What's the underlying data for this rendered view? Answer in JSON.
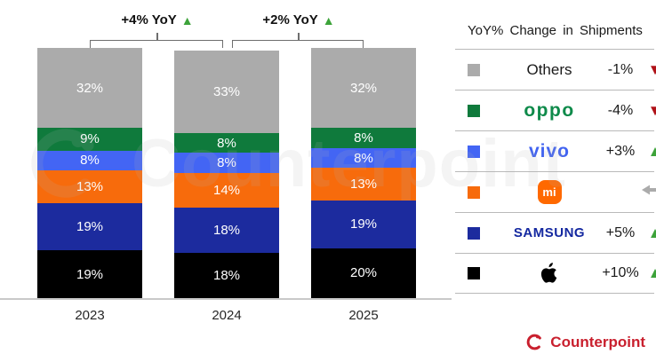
{
  "chart_data": {
    "type": "bar",
    "stacked": true,
    "categories": [
      "2023",
      "2024",
      "2025"
    ],
    "series": [
      {
        "name": "Apple",
        "color": "#000000",
        "values": [
          19,
          18,
          20
        ]
      },
      {
        "name": "Samsung",
        "color": "#1c2b9e",
        "values": [
          19,
          18,
          19
        ]
      },
      {
        "name": "Xiaomi",
        "color": "#f76b0c",
        "values": [
          13,
          14,
          13
        ]
      },
      {
        "name": "vivo",
        "color": "#4365f4",
        "values": [
          8,
          8,
          8
        ]
      },
      {
        "name": "OPPO",
        "color": "#0f7a3c",
        "values": [
          9,
          8,
          8
        ]
      },
      {
        "name": "Others",
        "color": "#ababab",
        "values": [
          32,
          33,
          32
        ]
      }
    ],
    "value_suffix": "%",
    "ylim": [
      0,
      100
    ],
    "grid": false,
    "legend_position": "right",
    "annotations": [
      {
        "text": "+4% YoY",
        "trend": "up",
        "between": [
          "2023",
          "2024"
        ]
      },
      {
        "text": "+2% YoY",
        "trend": "up",
        "between": [
          "2024",
          "2025"
        ]
      }
    ]
  },
  "icons": {
    "up": "▲",
    "down": "▼"
  },
  "legend": {
    "title": "YoY% Change in Shipments",
    "rows": [
      {
        "brand": "Others",
        "logo": "others",
        "color": "#ababab",
        "change": "-1%",
        "trend": "down"
      },
      {
        "brand": "oppo",
        "logo": "oppo",
        "color": "#0f7a3c",
        "change": "-4%",
        "trend": "down"
      },
      {
        "brand": "vivo",
        "logo": "vivo",
        "color": "#4365f4",
        "change": "+3%",
        "trend": "up"
      },
      {
        "brand": "mi",
        "logo": "mi",
        "color": "#f76b0c",
        "change": "",
        "trend": "flat"
      },
      {
        "brand": "SAMSUNG",
        "logo": "samsung",
        "color": "#1c2b9e",
        "change": "+5%",
        "trend": "up"
      },
      {
        "brand": "Apple",
        "logo": "apple",
        "color": "#000000",
        "change": "+10%",
        "trend": "up"
      }
    ]
  },
  "watermark": "Counterpoint",
  "footer": {
    "brand": "Counterpoint"
  },
  "colors": {
    "trend_up": "#3da33a",
    "trend_down": "#b01218",
    "flat_arrow": "#ababab",
    "brand_red": "#c9202e",
    "bracket": "#6e6e6e",
    "baseline": "#c9c9c9"
  }
}
